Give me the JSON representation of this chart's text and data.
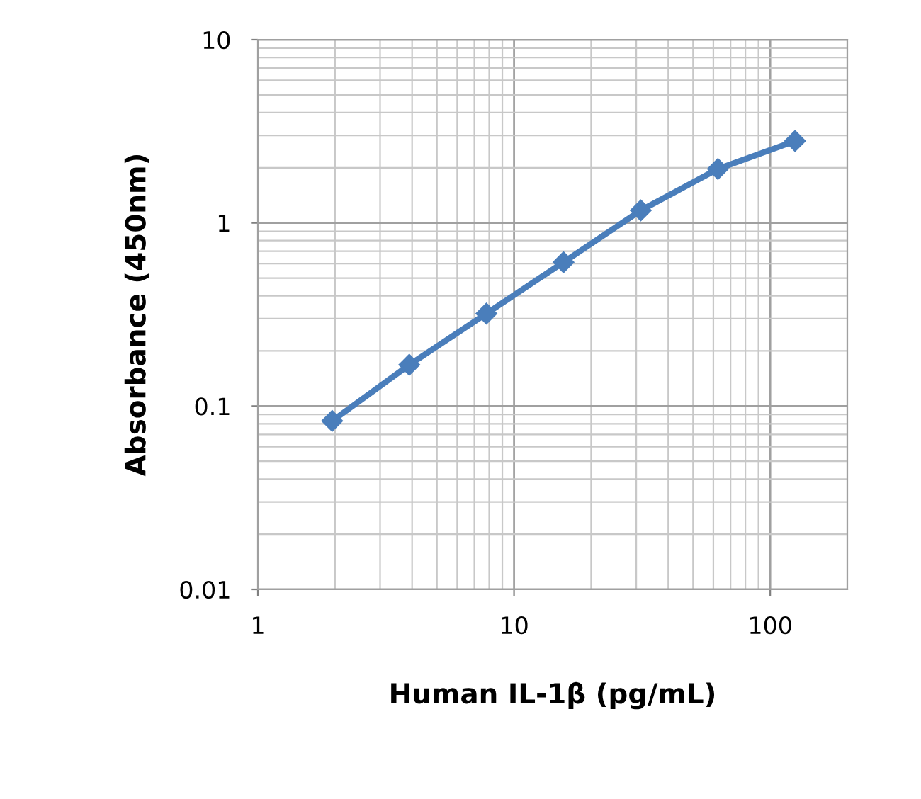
{
  "chart_data": {
    "type": "line",
    "xlabel": "Human IL-1β (pg/mL)",
    "ylabel": "Absorbance (450nm)",
    "x": [
      1.95,
      3.9,
      7.8,
      15.6,
      31.25,
      62.5,
      125
    ],
    "series": [
      {
        "color": "#4a7ebb",
        "values": [
          0.083,
          0.168,
          0.32,
          0.61,
          1.17,
          1.97,
          2.8
        ]
      }
    ],
    "log": "xy",
    "xlim": [
      1,
      200
    ],
    "ylim": [
      0.01,
      10
    ],
    "xticks": [
      1,
      10,
      100
    ],
    "yticks": [
      {
        "value": 0.01,
        "label": "0.01"
      },
      {
        "value": 0.1,
        "label": "0.1"
      },
      1,
      10
    ],
    "grid": true,
    "marker": "diamond",
    "line_style": "solid",
    "legend": false
  }
}
